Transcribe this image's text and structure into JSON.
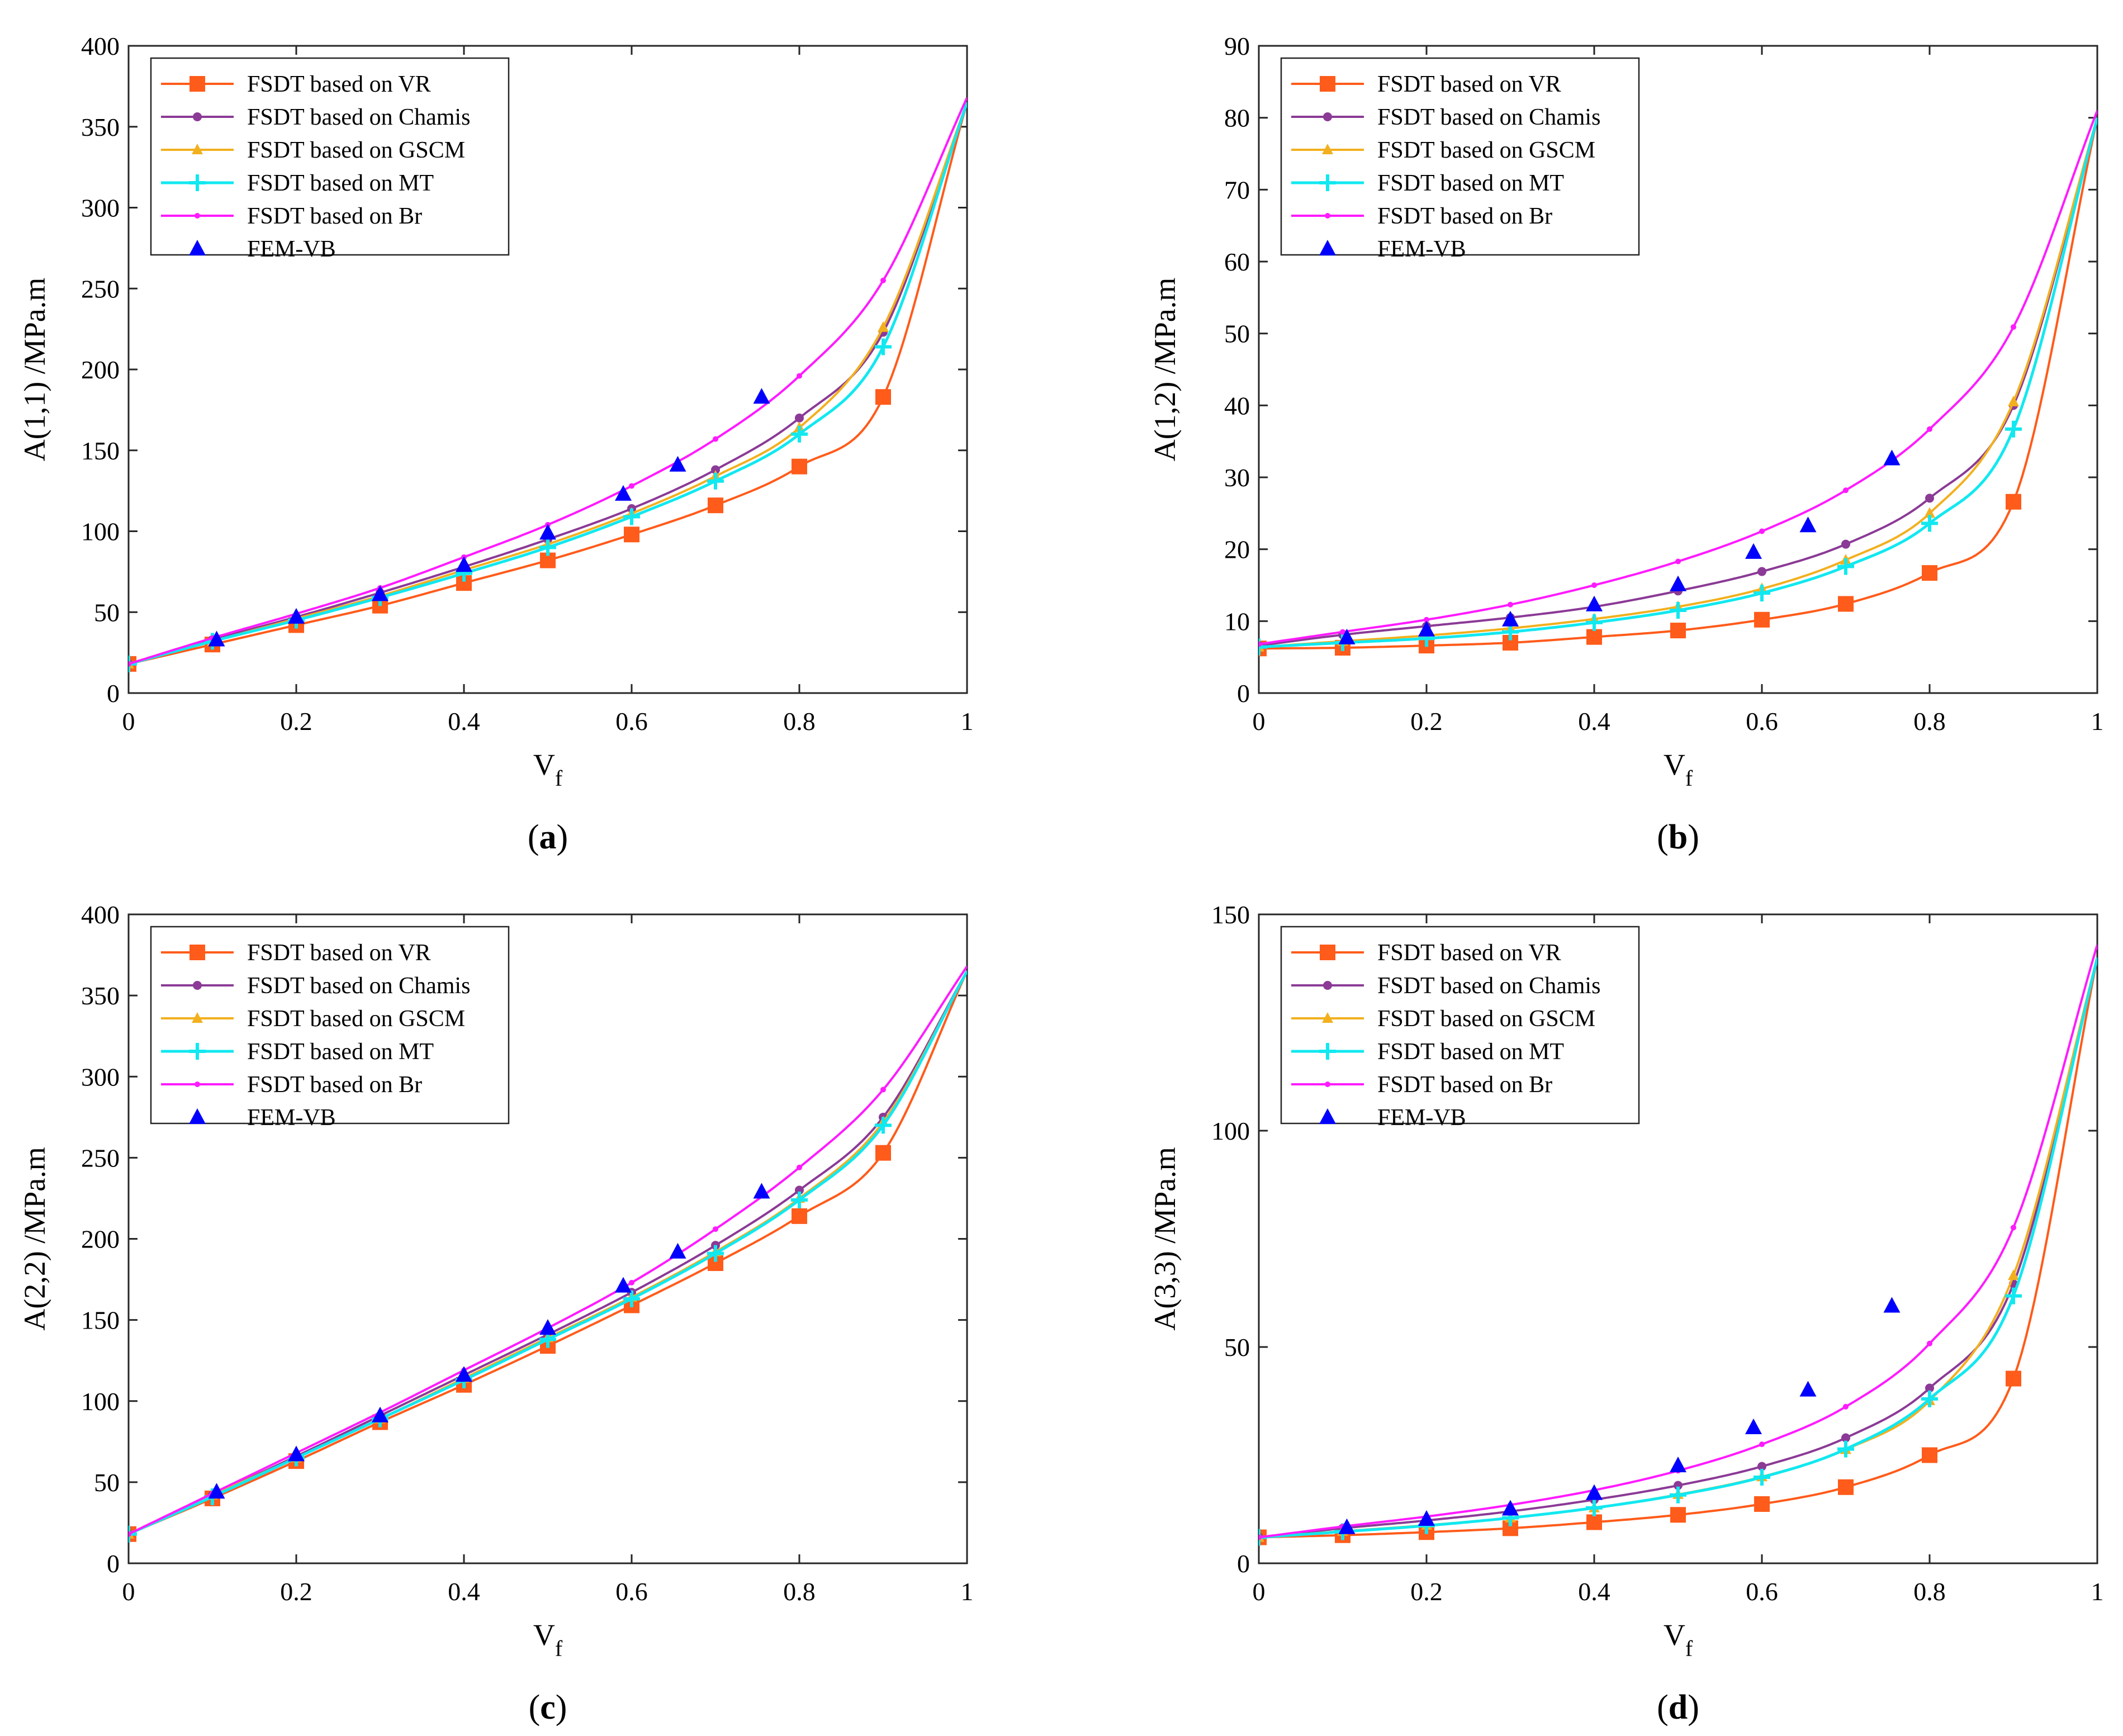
{
  "chart_data": [
    {
      "type": "line",
      "panel_label": "a",
      "xlabel": "V",
      "xlabel_sub": "f",
      "ylabel": "A(1,1) /MPa.m",
      "xlim": [
        0,
        1
      ],
      "ylim": [
        0,
        400
      ],
      "xticks": [
        "0",
        "0.2",
        "0.4",
        "0.6",
        "0.8",
        "1"
      ],
      "yticks": [
        "0",
        "50",
        "100",
        "150",
        "200",
        "250",
        "300",
        "350",
        "400"
      ],
      "x": [
        0,
        0.1,
        0.2,
        0.3,
        0.4,
        0.5,
        0.6,
        0.7,
        0.8,
        0.9,
        1.0
      ],
      "series": [
        {
          "name": "FSDT based on VR",
          "values": [
            18,
            30,
            42,
            54,
            68,
            82,
            98,
            116,
            140,
            183,
            365
          ]
        },
        {
          "name": "FSDT based on Chamis",
          "values": [
            18,
            33,
            47,
            62,
            78,
            95,
            114,
            138,
            170,
            223,
            365
          ]
        },
        {
          "name": "FSDT based on GSCM",
          "values": [
            18,
            32,
            46,
            60,
            76,
            92,
            111,
            134,
            164,
            226,
            365
          ]
        },
        {
          "name": "FSDT based on MT",
          "values": [
            18,
            32,
            45,
            59,
            74,
            90,
            109,
            131,
            160,
            214,
            365
          ]
        },
        {
          "name": "FSDT based on Br",
          "values": [
            18,
            34,
            49,
            65,
            84,
            104,
            128,
            157,
            196,
            255,
            368
          ]
        }
      ],
      "scatter": {
        "name": "FEM-VB",
        "x": [
          0.105,
          0.2,
          0.3,
          0.4,
          0.5,
          0.59,
          0.655,
          0.755
        ],
        "y": [
          33,
          47,
          61,
          79,
          99,
          123,
          141,
          183
        ]
      }
    },
    {
      "type": "line",
      "panel_label": "b",
      "xlabel": "V",
      "xlabel_sub": "f",
      "ylabel": "A(1,2) /MPa.m",
      "xlim": [
        0,
        1
      ],
      "ylim": [
        0,
        90
      ],
      "xticks": [
        "0",
        "0.2",
        "0.4",
        "0.6",
        "0.8",
        "1"
      ],
      "yticks": [
        "0",
        "10",
        "20",
        "30",
        "40",
        "50",
        "60",
        "70",
        "80",
        "90"
      ],
      "x": [
        0,
        0.1,
        0.2,
        0.3,
        0.4,
        0.5,
        0.6,
        0.7,
        0.8,
        0.9,
        1.0
      ],
      "series": [
        {
          "name": "FSDT based on VR",
          "values": [
            6.2,
            6.3,
            6.6,
            7.0,
            7.8,
            8.7,
            10.2,
            12.4,
            16.7,
            26.6,
            80
          ]
        },
        {
          "name": "FSDT based on Chamis",
          "values": [
            6.6,
            8.1,
            9.3,
            10.5,
            12.0,
            14.2,
            16.9,
            20.7,
            27.1,
            40.0,
            80
          ]
        },
        {
          "name": "FSDT based on GSCM",
          "values": [
            6.4,
            7.2,
            8.0,
            9.0,
            10.3,
            12.0,
            14.5,
            18.5,
            25.0,
            40.5,
            80
          ]
        },
        {
          "name": "FSDT based on MT",
          "values": [
            6.4,
            7.0,
            7.6,
            8.5,
            9.8,
            11.5,
            13.9,
            17.6,
            23.6,
            36.7,
            80
          ]
        },
        {
          "name": "FSDT based on Br",
          "values": [
            6.8,
            8.5,
            10.2,
            12.3,
            15.0,
            18.3,
            22.5,
            28.2,
            36.7,
            50.9,
            81
          ]
        }
      ],
      "scatter": {
        "name": "FEM-VB",
        "x": [
          0.105,
          0.2,
          0.3,
          0.4,
          0.5,
          0.59,
          0.655,
          0.755
        ],
        "y": [
          7.7,
          8.8,
          10.2,
          12.3,
          15.1,
          19.6,
          23.3,
          32.6
        ]
      }
    },
    {
      "type": "line",
      "panel_label": "c",
      "xlabel": "V",
      "xlabel_sub": "f",
      "ylabel": "A(2,2) /MPa.m",
      "xlim": [
        0,
        1
      ],
      "ylim": [
        0,
        400
      ],
      "xticks": [
        "0",
        "0.2",
        "0.4",
        "0.6",
        "0.8",
        "1"
      ],
      "yticks": [
        "0",
        "50",
        "100",
        "150",
        "200",
        "250",
        "300",
        "350",
        "400"
      ],
      "x": [
        0,
        0.1,
        0.2,
        0.3,
        0.4,
        0.5,
        0.6,
        0.7,
        0.8,
        0.9,
        1.0
      ],
      "series": [
        {
          "name": "FSDT based on VR",
          "values": [
            18,
            40,
            63,
            87,
            110,
            134,
            159,
            185,
            214,
            253,
            365
          ]
        },
        {
          "name": "FSDT based on Chamis",
          "values": [
            18,
            42,
            66,
            91,
            116,
            141,
            167,
            196,
            230,
            275,
            365
          ]
        },
        {
          "name": "FSDT based on GSCM",
          "values": [
            18,
            42,
            65,
            89,
            114,
            139,
            164,
            192,
            225,
            272,
            365
          ]
        },
        {
          "name": "FSDT based on MT",
          "values": [
            18,
            41,
            65,
            89,
            113,
            138,
            163,
            191,
            224,
            270,
            365
          ]
        },
        {
          "name": "FSDT based on Br",
          "values": [
            18,
            43,
            68,
            93,
            119,
            145,
            173,
            206,
            244,
            292,
            368
          ]
        }
      ],
      "scatter": {
        "name": "FEM-VB",
        "x": [
          0.105,
          0.2,
          0.3,
          0.4,
          0.5,
          0.59,
          0.655,
          0.755
        ],
        "y": [
          44,
          67,
          91,
          116,
          145,
          171,
          192,
          229
        ]
      }
    },
    {
      "type": "line",
      "panel_label": "d",
      "xlabel": "V",
      "xlabel_sub": "f",
      "ylabel": "A(3,3) /MPa.m",
      "xlim": [
        0,
        1
      ],
      "ylim": [
        0,
        150
      ],
      "xticks": [
        "0",
        "0.2",
        "0.4",
        "0.6",
        "0.8",
        "1"
      ],
      "yticks": [
        "0",
        "50",
        "100",
        "150"
      ],
      "x": [
        0,
        0.1,
        0.2,
        0.3,
        0.4,
        0.5,
        0.6,
        0.7,
        0.8,
        0.9,
        1.0
      ],
      "series": [
        {
          "name": "FSDT based on VR",
          "values": [
            6,
            6.5,
            7.2,
            8.1,
            9.5,
            11.2,
            13.7,
            17.6,
            25,
            42.7,
            140
          ]
        },
        {
          "name": "FSDT based on Chamis",
          "values": [
            6,
            8.1,
            9.9,
            12.0,
            14.7,
            18.0,
            22.4,
            29.0,
            40.5,
            64.6,
            140
          ]
        },
        {
          "name": "FSDT based on GSCM",
          "values": [
            6,
            7.4,
            8.8,
            10.5,
            12.8,
            15.9,
            20.0,
            26.3,
            37.6,
            66.5,
            140
          ]
        },
        {
          "name": "FSDT based on MT",
          "values": [
            6,
            7.3,
            8.7,
            10.5,
            12.8,
            15.8,
            19.9,
            26.4,
            38.0,
            61.8,
            140
          ]
        },
        {
          "name": "FSDT based on Br",
          "values": [
            6,
            8.5,
            10.8,
            13.5,
            16.9,
            21.4,
            27.5,
            36.2,
            50.8,
            77.6,
            143
          ]
        }
      ],
      "scatter": {
        "name": "FEM-VB",
        "x": [
          0.105,
          0.2,
          0.3,
          0.4,
          0.5,
          0.59,
          0.655,
          0.755
        ],
        "y": [
          8.3,
          10.2,
          12.6,
          16.2,
          22.6,
          31.4,
          40.1,
          59.5
        ]
      }
    }
  ],
  "legend_labels": [
    "FSDT based on VR",
    "FSDT based on Chamis",
    "FSDT based on GSCM",
    "FSDT based on MT",
    "FSDT based on Br",
    "FEM-VB"
  ],
  "colors": {
    "vr": "#ff5b1a",
    "chamis": "#8b3a96",
    "gscm": "#f2b01e",
    "mt": "#11e8f0",
    "br": "#ff1aff",
    "fem": "#0000ff"
  }
}
